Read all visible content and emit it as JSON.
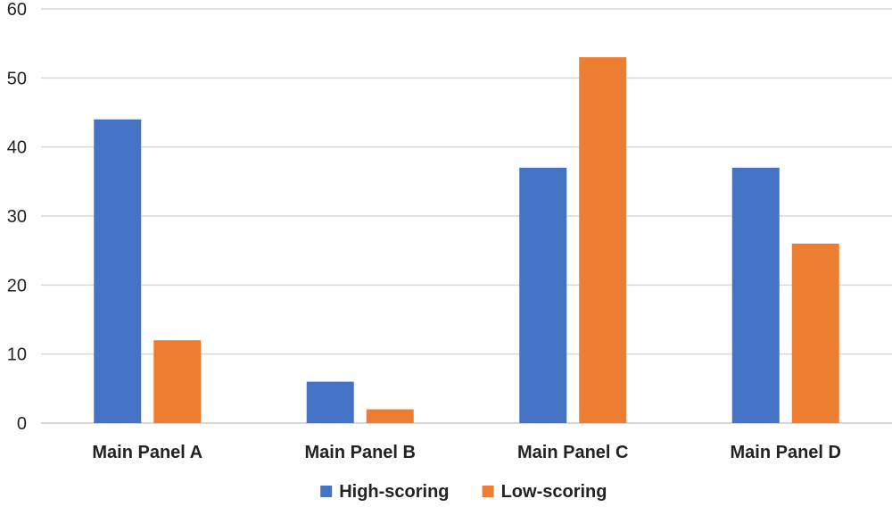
{
  "chart_data": {
    "type": "bar",
    "categories": [
      "Main Panel A",
      "Main Panel B",
      "Main Panel C",
      "Main Panel D"
    ],
    "series": [
      {
        "name": "High-scoring",
        "values": [
          44,
          6,
          37,
          37
        ],
        "color": "#4472C4"
      },
      {
        "name": "Low-scoring",
        "values": [
          12,
          2,
          53,
          26
        ],
        "color": "#ED7D31"
      }
    ],
    "yticks": [
      "0",
      "10",
      "20",
      "30",
      "40",
      "50",
      "60"
    ],
    "ylim": [
      0,
      60
    ],
    "grid": true,
    "legend_position": "bottom",
    "title": "",
    "xlabel": "",
    "ylabel": ""
  }
}
